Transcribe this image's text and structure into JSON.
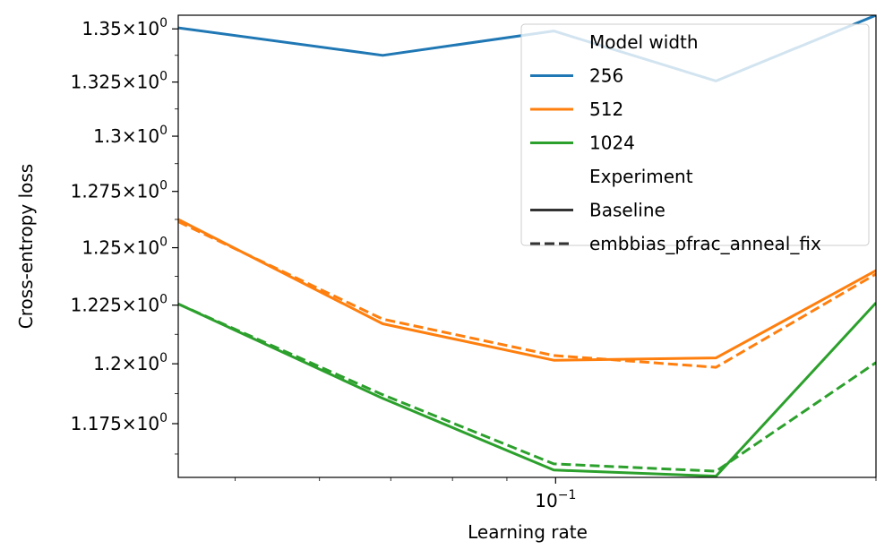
{
  "chart_data": {
    "type": "line",
    "title": "",
    "xlabel": "Learning rate",
    "ylabel": "Cross-entropy loss",
    "xscale": "log",
    "yscale": "log",
    "xlim": [
      0.0442,
      0.2
    ],
    "ylim": [
      1.153,
      1.3565
    ],
    "x": [
      0.0442,
      0.0688,
      0.0996,
      0.1415,
      0.2
    ],
    "x_tick_labels": [
      {
        "value": 0.1,
        "base": "10",
        "exp": "−1"
      }
    ],
    "y_tick_labels": [
      {
        "value": 1.35,
        "label": "1.35"
      },
      {
        "value": 1.325,
        "label": "1.325"
      },
      {
        "value": 1.3,
        "label": "1.3"
      },
      {
        "value": 1.275,
        "label": "1.275"
      },
      {
        "value": 1.25,
        "label": "1.25"
      },
      {
        "value": 1.225,
        "label": "1.225"
      },
      {
        "value": 1.2,
        "label": "1.2"
      },
      {
        "value": 1.175,
        "label": "1.175"
      }
    ],
    "y_tick_suffix": "×10",
    "y_tick_exp": "0",
    "series": [
      {
        "name": "256",
        "experiment": "Baseline",
        "color": "#1f77b4",
        "style": "solid",
        "values": [
          1.3505,
          1.3375,
          1.349,
          1.3255,
          1.3565
        ]
      },
      {
        "name": "512",
        "experiment": "Baseline",
        "color": "#ff7f0e",
        "style": "solid",
        "values": [
          1.2625,
          1.217,
          1.2015,
          1.2025,
          1.24
        ]
      },
      {
        "name": "512",
        "experiment": "embbias_pfrac_anneal_fix",
        "color": "#ff7f0e",
        "style": "dashed",
        "values": [
          1.2615,
          1.219,
          1.2035,
          1.1985,
          1.2385
        ]
      },
      {
        "name": "1024",
        "experiment": "Baseline",
        "color": "#2ca02c",
        "style": "solid",
        "values": [
          1.2255,
          1.1855,
          1.156,
          1.1535,
          1.226
        ]
      },
      {
        "name": "1024",
        "experiment": "embbias_pfrac_anneal_fix",
        "color": "#2ca02c",
        "style": "dashed",
        "values": [
          1.2255,
          1.187,
          1.1585,
          1.1555,
          1.2005
        ]
      }
    ],
    "legend": {
      "position": "top-right",
      "groups": [
        {
          "title": "Model width",
          "entries": [
            {
              "label": "256",
              "color": "#1f77b4",
              "style": "solid"
            },
            {
              "label": "512",
              "color": "#ff7f0e",
              "style": "solid"
            },
            {
              "label": "1024",
              "color": "#2ca02c",
              "style": "solid"
            }
          ]
        },
        {
          "title": "Experiment",
          "entries": [
            {
              "label": "Baseline",
              "color": "#333333",
              "style": "solid"
            },
            {
              "label": "embbias_pfrac_anneal_fix",
              "color": "#333333",
              "style": "dashed"
            }
          ]
        }
      ]
    }
  }
}
